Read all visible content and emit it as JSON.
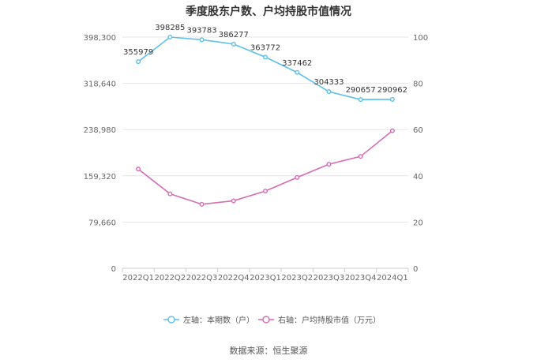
{
  "title": "季度股东户数、户均持股市值情况",
  "source_text": "数据来源：恒生聚源",
  "chart_data": {
    "type": "line",
    "categories": [
      "2022Q1",
      "2022Q2",
      "2022Q3",
      "2022Q4",
      "2023Q1",
      "2023Q2",
      "2023Q3",
      "2023Q4",
      "2024Q1"
    ],
    "series": [
      {
        "name": "左轴：本期数（户）",
        "axis": "left",
        "color": "#5bc0eb",
        "values": [
          355979,
          398285,
          393783,
          386277,
          363772,
          337462,
          304333,
          290657,
          290962
        ],
        "labels": [
          "355979",
          "398285",
          "393783",
          "386277",
          "363772",
          "337462",
          "304333",
          "290657",
          "290962"
        ]
      },
      {
        "name": "右轴：户均持股市值（万元）",
        "axis": "right",
        "color": "#d66bb6",
        "values": [
          42.9,
          32.2,
          27.7,
          29.2,
          33.4,
          39.3,
          45.0,
          48.4,
          59.5
        ]
      }
    ],
    "left_axis": {
      "min": 0,
      "max": 398300,
      "ticks": [
        0,
        79660,
        159320,
        238980,
        318640,
        398300
      ],
      "tick_labels": [
        "0",
        "79,660",
        "159,320",
        "238,980",
        "318,640",
        "398,300"
      ]
    },
    "right_axis": {
      "min": 0,
      "max": 100,
      "ticks": [
        0,
        20,
        40,
        60,
        80,
        100
      ],
      "tick_labels": [
        "0",
        "20",
        "40",
        "60",
        "80",
        "100"
      ]
    },
    "grid": true,
    "legend_position": "bottom"
  }
}
